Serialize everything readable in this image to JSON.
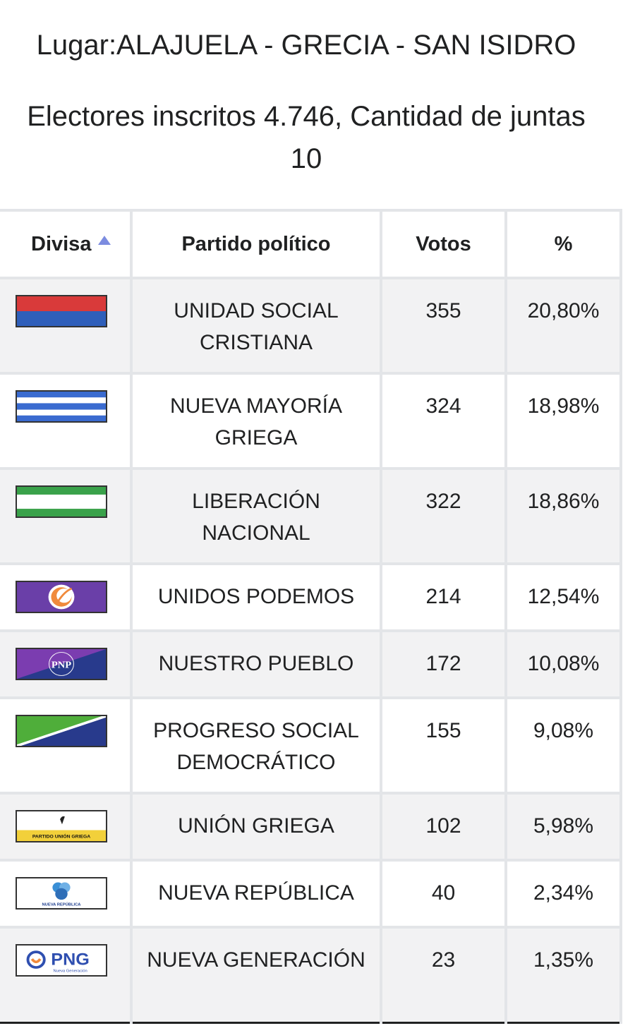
{
  "header": {
    "place": "Lugar:ALAJUELA - GRECIA - SAN ISIDRO",
    "voters_line1": "Electores inscritos 4.746, Cantidad de juntas",
    "voters_line2": "10"
  },
  "table": {
    "columns": [
      "Divisa",
      "Partido político",
      "Votos",
      "%"
    ],
    "sort_icon": "sort-ascending-icon",
    "rows": [
      {
        "flag": "flag-unidad-social-cristiana",
        "party": "UNIDAD SOCIAL CRISTIANA",
        "votes": "355",
        "pct": "20,80%"
      },
      {
        "flag": "flag-nueva-mayoria-griega",
        "party": "NUEVA MAYORÍA GRIEGA",
        "votes": "324",
        "pct": "18,98%"
      },
      {
        "flag": "flag-liberacion-nacional",
        "party": "LIBERACIÓN NACIONAL",
        "votes": "322",
        "pct": "18,86%"
      },
      {
        "flag": "flag-unidos-podemos",
        "party": "UNIDOS PODEMOS",
        "votes": "214",
        "pct": "12,54%"
      },
      {
        "flag": "flag-nuestro-pueblo",
        "party": "NUESTRO PUEBLO",
        "votes": "172",
        "pct": "10,08%",
        "flag_text": "PNP"
      },
      {
        "flag": "flag-progreso-social-democratico",
        "party": "PROGRESO SOCIAL DEMOCRÁTICO",
        "votes": "155",
        "pct": "9,08%"
      },
      {
        "flag": "flag-union-griega",
        "party": "UNIÓN GRIEGA",
        "votes": "102",
        "pct": "5,98%",
        "flag_text": "PARTIDO UNIÓN GRIEGA"
      },
      {
        "flag": "flag-nueva-republica",
        "party": "NUEVA REPÚBLICA",
        "votes": "40",
        "pct": "2,34%",
        "flag_text": "NUEVA REPÚBLICA"
      },
      {
        "flag": "flag-nueva-generacion",
        "party": "NUEVA GENERACIÓN",
        "votes": "23",
        "pct": "1,35%",
        "flag_text": "PNG",
        "flag_subtext": "Nueva Generación"
      }
    ]
  },
  "colors": {
    "header_border": "#e3e5e8",
    "row_alt": "#f2f2f3",
    "sort_icon": "#7c8ce0"
  }
}
